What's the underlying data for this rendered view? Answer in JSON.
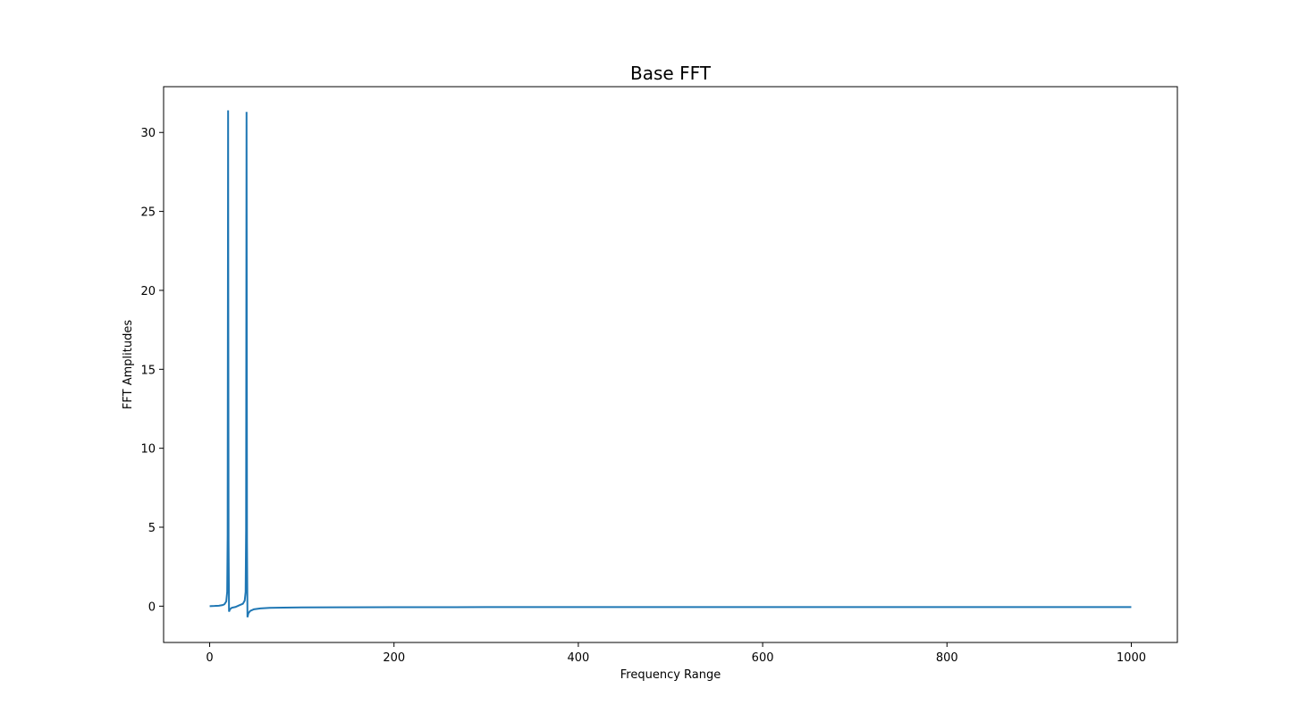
{
  "chart_data": {
    "type": "line",
    "title": "Base FFT",
    "xlabel": "Frequency Range",
    "ylabel": "FFT Amplitudes",
    "xlim": [
      -50,
      1050
    ],
    "ylim": [
      -2.3,
      32.9
    ],
    "xticks": [
      0,
      200,
      400,
      600,
      800,
      1000
    ],
    "yticks": [
      0,
      5,
      10,
      15,
      20,
      25,
      30
    ],
    "xtick_labels": [
      "0",
      "200",
      "400",
      "600",
      "800",
      "1000"
    ],
    "ytick_labels": [
      "0",
      "5",
      "10",
      "15",
      "20",
      "25",
      "30"
    ],
    "grid": false,
    "line_color": "#1f77b4",
    "series": [
      {
        "x": [
          0,
          5,
          10,
          14,
          16,
          18,
          19,
          19.5,
          20,
          20.5,
          21,
          22,
          24,
          28,
          32,
          36,
          38,
          39,
          39.5,
          40,
          40.5,
          41,
          42,
          44,
          48,
          55,
          65,
          80,
          100,
          150,
          200,
          300,
          400,
          500,
          600,
          700,
          800,
          900,
          1000
        ],
        "values": [
          0,
          0.01,
          0.03,
          0.07,
          0.12,
          0.3,
          0.9,
          4.5,
          31.4,
          4.0,
          -0.35,
          -0.2,
          -0.1,
          -0.05,
          0.05,
          0.15,
          0.35,
          0.9,
          4.8,
          31.3,
          4.0,
          -0.7,
          -0.45,
          -0.3,
          -0.2,
          -0.14,
          -0.11,
          -0.09,
          -0.08,
          -0.07,
          -0.065,
          -0.06,
          -0.06,
          -0.06,
          -0.06,
          -0.06,
          -0.06,
          -0.06,
          -0.06
        ]
      }
    ]
  }
}
